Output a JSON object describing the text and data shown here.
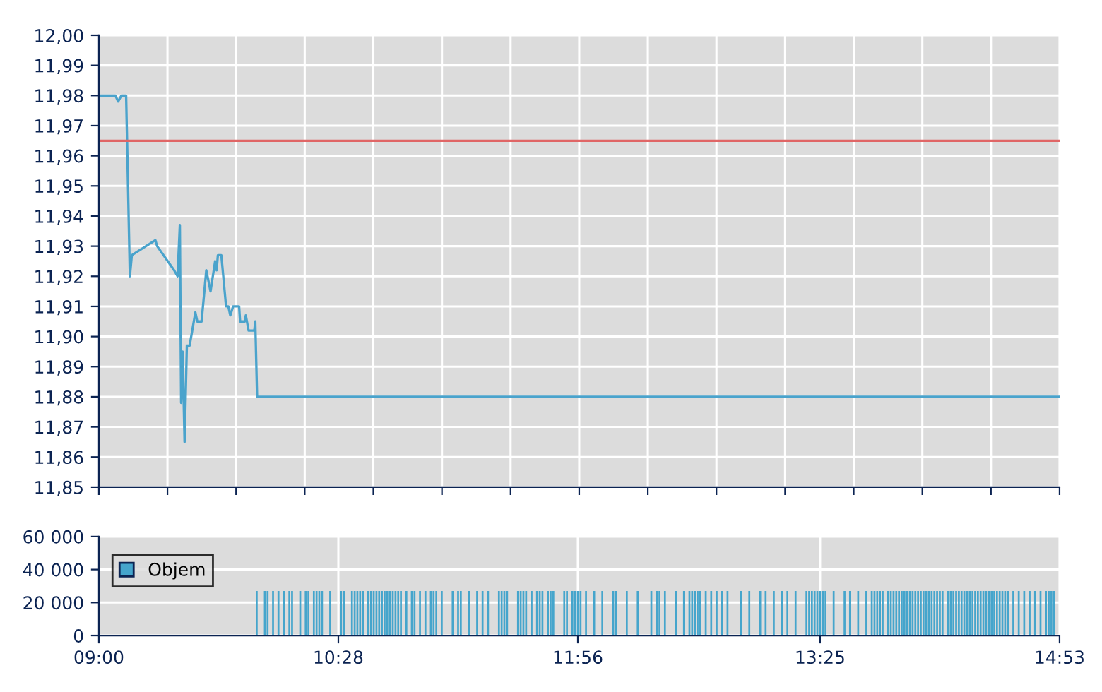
{
  "chart_data": [
    {
      "type": "line",
      "series": [
        {
          "color": "#4aa3cc",
          "x": [
            9.0,
            9.101,
            9.118,
            9.138,
            9.167,
            9.19,
            9.202,
            9.346,
            9.357,
            9.461,
            9.482,
            9.496,
            9.504,
            9.513,
            9.525,
            9.539,
            9.556,
            9.591,
            9.603,
            9.629,
            9.658,
            9.684,
            9.712,
            9.721,
            9.729,
            9.75,
            9.779,
            9.793,
            9.805,
            9.822,
            9.859,
            9.865,
            9.894,
            9.9,
            9.917,
            9.952,
            9.958,
            9.969,
            14.883
          ],
          "values": [
            11.98,
            11.98,
            11.978,
            11.98,
            11.98,
            11.92,
            11.927,
            11.932,
            11.93,
            11.922,
            11.92,
            11.937,
            11.878,
            11.895,
            11.865,
            11.897,
            11.897,
            11.908,
            11.905,
            11.905,
            11.922,
            11.915,
            11.925,
            11.922,
            11.927,
            11.927,
            11.91,
            11.91,
            11.907,
            11.91,
            11.91,
            11.905,
            11.905,
            11.907,
            11.902,
            11.902,
            11.905,
            11.88,
            11.88
          ]
        }
      ],
      "xlim": [
        9.0,
        14.8833
      ],
      "xticks": [
        {
          "value": 9.0,
          "label": null
        },
        {
          "value": 9.4202,
          "label": null
        },
        {
          "value": 9.8405,
          "label": null
        },
        {
          "value": 10.2607,
          "label": null
        },
        {
          "value": 10.681,
          "label": null
        },
        {
          "value": 11.1012,
          "label": null
        },
        {
          "value": 11.5214,
          "label": null
        },
        {
          "value": 11.9417,
          "label": null
        },
        {
          "value": 12.3619,
          "label": null
        },
        {
          "value": 12.7821,
          "label": null
        },
        {
          "value": 13.2024,
          "label": null
        },
        {
          "value": 13.6226,
          "label": null
        },
        {
          "value": 14.0429,
          "label": null
        },
        {
          "value": 14.4631,
          "label": null
        },
        {
          "value": 14.8833,
          "label": null
        }
      ],
      "ylim": [
        11.85,
        12.0
      ],
      "yticks": [
        {
          "value": 11.85,
          "label": "11,85"
        },
        {
          "value": 11.86,
          "label": "11,86"
        },
        {
          "value": 11.87,
          "label": "11,87"
        },
        {
          "value": 11.88,
          "label": "11,88"
        },
        {
          "value": 11.89,
          "label": "11,89"
        },
        {
          "value": 11.9,
          "label": "11,90"
        },
        {
          "value": 11.91,
          "label": "11,91"
        },
        {
          "value": 11.92,
          "label": "11,92"
        },
        {
          "value": 11.93,
          "label": "11,93"
        },
        {
          "value": 11.94,
          "label": "11,94"
        },
        {
          "value": 11.95,
          "label": "11,95"
        },
        {
          "value": 11.96,
          "label": "11,96"
        },
        {
          "value": 11.97,
          "label": "11,97"
        },
        {
          "value": 11.98,
          "label": "11,98"
        },
        {
          "value": 11.99,
          "label": "11,99"
        },
        {
          "value": 12.0,
          "label": "12,00"
        }
      ],
      "ref_lines": [
        {
          "axis": "y",
          "value": 11.965,
          "color": "#e06666"
        }
      ],
      "grid": true,
      "tick_labels": "y"
    },
    {
      "type": "bar",
      "series": [
        {
          "name": "Objem",
          "color": "#45a5cc",
          "x": [
            9.9667,
            10.0167,
            10.0333,
            10.0667,
            10.1,
            10.1333,
            10.1667,
            10.1833,
            10.2333,
            10.2667,
            10.2833,
            10.3167,
            10.3333,
            10.35,
            10.3667,
            10.4167,
            10.4833,
            10.5,
            10.55,
            10.5667,
            10.5833,
            10.6,
            10.6167,
            10.65,
            10.6667,
            10.6833,
            10.7,
            10.7167,
            10.7333,
            10.75,
            10.7667,
            10.7833,
            10.8,
            10.8167,
            10.8333,
            10.85,
            10.8833,
            10.9167,
            10.9333,
            10.9667,
            11.0,
            11.0333,
            11.05,
            11.0667,
            11.1,
            11.1667,
            11.2,
            11.2167,
            11.2667,
            11.3167,
            11.35,
            11.3833,
            11.45,
            11.4667,
            11.4833,
            11.5,
            11.5667,
            11.5833,
            11.6,
            11.6167,
            11.65,
            11.6833,
            11.7,
            11.7167,
            11.75,
            11.7667,
            11.7833,
            11.85,
            11.8667,
            11.9,
            11.9167,
            11.9333,
            11.95,
            11.9833,
            12.0333,
            12.0833,
            12.15,
            12.1667,
            12.2333,
            12.3,
            12.3833,
            12.4167,
            12.4333,
            12.4667,
            12.5333,
            12.5833,
            12.6167,
            12.6333,
            12.65,
            12.6667,
            12.6833,
            12.7167,
            12.75,
            12.7833,
            12.8167,
            12.85,
            12.9333,
            12.9833,
            13.05,
            13.0833,
            13.1333,
            13.1833,
            13.2167,
            13.2667,
            13.3333,
            13.35,
            13.3667,
            13.3833,
            13.4,
            13.4167,
            13.4333,
            13.45,
            13.5,
            13.5667,
            13.6,
            13.65,
            13.7,
            13.7333,
            13.75,
            13.7667,
            13.7833,
            13.8,
            13.8333,
            13.85,
            13.8667,
            13.8833,
            13.9,
            13.9167,
            13.9333,
            13.95,
            13.9667,
            13.9833,
            14.0,
            14.0167,
            14.0333,
            14.05,
            14.0667,
            14.0833,
            14.1,
            14.1167,
            14.1333,
            14.15,
            14.1667,
            14.2,
            14.2167,
            14.2333,
            14.25,
            14.2667,
            14.2833,
            14.3,
            14.3167,
            14.3333,
            14.35,
            14.3667,
            14.3833,
            14.4,
            14.4167,
            14.4333,
            14.45,
            14.4667,
            14.4833,
            14.5,
            14.5167,
            14.5333,
            14.55,
            14.5667,
            14.6,
            14.6333,
            14.6667,
            14.7,
            14.7333,
            14.7667,
            14.8,
            14.8167,
            14.8333,
            14.85
          ],
          "values": [
            27000,
            27000,
            27000,
            27000,
            27000,
            27000,
            27000,
            27000,
            27000,
            27000,
            27000,
            27000,
            27000,
            27000,
            27000,
            27000,
            27000,
            27000,
            27000,
            27000,
            27000,
            27000,
            27000,
            27000,
            27000,
            27000,
            27000,
            27000,
            27000,
            27000,
            27000,
            27000,
            27000,
            27000,
            27000,
            27000,
            27000,
            27000,
            27000,
            27000,
            27000,
            27000,
            27000,
            27000,
            27000,
            27000,
            27000,
            27000,
            27000,
            27000,
            27000,
            27000,
            27000,
            27000,
            27000,
            27000,
            27000,
            27000,
            27000,
            27000,
            27000,
            27000,
            27000,
            27000,
            27000,
            27000,
            27000,
            27000,
            27000,
            27000,
            27000,
            27000,
            27000,
            27000,
            27000,
            27000,
            27000,
            27000,
            27000,
            27000,
            27000,
            27000,
            27000,
            27000,
            27000,
            27000,
            27000,
            27000,
            27000,
            27000,
            27000,
            27000,
            27000,
            27000,
            27000,
            27000,
            27000,
            27000,
            27000,
            27000,
            27000,
            27000,
            27000,
            27000,
            27000,
            27000,
            27000,
            27000,
            27000,
            27000,
            27000,
            27000,
            27000,
            27000,
            27000,
            27000,
            27000,
            27000,
            27000,
            27000,
            27000,
            27000,
            27000,
            27000,
            27000,
            27000,
            27000,
            27000,
            27000,
            27000,
            27000,
            27000,
            27000,
            27000,
            27000,
            27000,
            27000,
            27000,
            27000,
            27000,
            27000,
            27000,
            27000,
            27000,
            27000,
            27000,
            27000,
            27000,
            27000,
            27000,
            27000,
            27000,
            27000,
            27000,
            27000,
            27000,
            27000,
            27000,
            27000,
            27000,
            27000,
            27000,
            27000,
            27000,
            27000,
            27000,
            27000,
            27000,
            27000,
            27000,
            27000,
            27000,
            27000,
            27000,
            27000,
            27000
          ]
        }
      ],
      "xlim": [
        9.0,
        14.8833
      ],
      "xticks": [
        {
          "value": 9.0,
          "label": "09:00"
        },
        {
          "value": 10.4667,
          "label": "10:28"
        },
        {
          "value": 11.9333,
          "label": "11:56"
        },
        {
          "value": 13.4167,
          "label": "13:25"
        },
        {
          "value": 14.8833,
          "label": "14:53"
        }
      ],
      "ylim": [
        0,
        60000
      ],
      "yticks": [
        {
          "value": 0,
          "label": "0"
        },
        {
          "value": 20000,
          "label": "20 000"
        },
        {
          "value": 40000,
          "label": "40 000"
        },
        {
          "value": 60000,
          "label": "60 000"
        }
      ],
      "grid": true,
      "legend": "upper left"
    }
  ]
}
